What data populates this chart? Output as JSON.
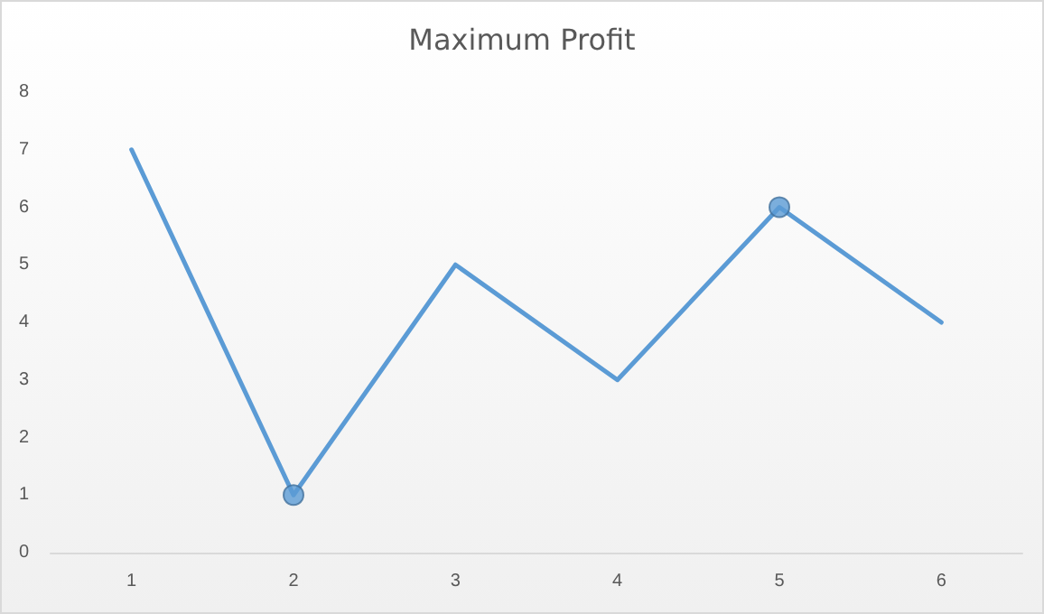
{
  "chart_data": {
    "type": "line",
    "title": "Maximum Profit",
    "categories": [
      "1",
      "2",
      "3",
      "4",
      "5",
      "6"
    ],
    "series": [
      {
        "color": "#5b9bd5",
        "values": [
          7,
          1,
          5,
          3,
          6,
          4
        ],
        "marker": "none"
      },
      {
        "type": "scatter",
        "color": "#5b9bd5",
        "x": [
          "2",
          "5"
        ],
        "values": [
          1,
          6
        ],
        "marker": "circle"
      }
    ],
    "ylim": [
      0,
      8
    ],
    "yticks": [
      0,
      1,
      2,
      3,
      4,
      5,
      6,
      7,
      8
    ],
    "grid": false
  }
}
